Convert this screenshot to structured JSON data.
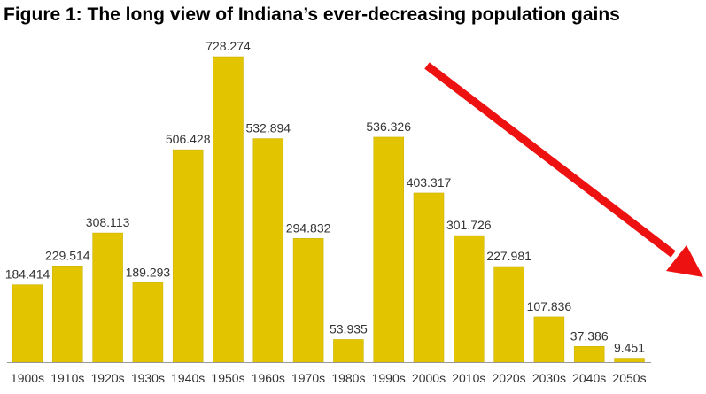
{
  "title": "Figure 1: The long view of Indiana’s ever-decreasing population gains",
  "chart_data": {
    "type": "bar",
    "title": "Figure 1: The long view of Indiana’s ever-decreasing population gains",
    "xlabel": "",
    "ylabel": "",
    "categories": [
      "1900s",
      "1910s",
      "1920s",
      "1930s",
      "1940s",
      "1950s",
      "1960s",
      "1970s",
      "1980s",
      "1990s",
      "2000s",
      "2010s",
      "2020s",
      "2030s",
      "2040s",
      "2050s"
    ],
    "values": [
      184.414,
      229.514,
      308.113,
      189.293,
      506.428,
      728.274,
      532.894,
      294.832,
      53.935,
      536.326,
      403.317,
      301.726,
      227.981,
      107.836,
      37.386,
      9.451
    ],
    "value_labels": [
      "184.414",
      "229.514",
      "308.113",
      "189.293",
      "506.428",
      "728.274",
      "532.894",
      "294.832",
      "53.935",
      "536.326",
      "403.317",
      "301.726",
      "227.981",
      "107.836",
      "37.386",
      "9.451"
    ],
    "ylim": [
      0,
      728.274
    ],
    "grid": false,
    "legend": "none",
    "annotation": "red downward-trend arrow",
    "colors": {
      "bar": "#E2C400",
      "bar_edge": "#C9AE00",
      "axis": "#999999",
      "arrow": "#EE1111"
    }
  }
}
